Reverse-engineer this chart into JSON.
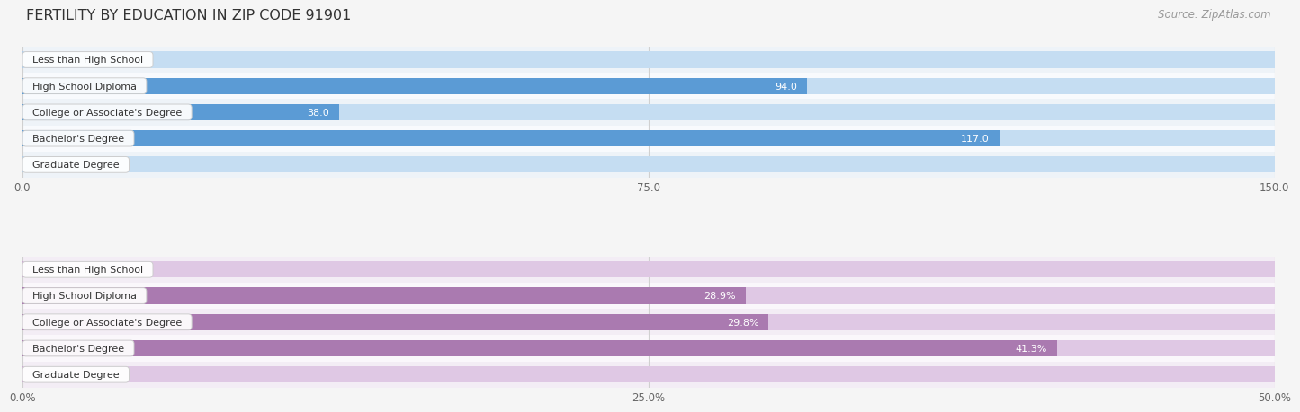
{
  "title": "FERTILITY BY EDUCATION IN ZIP CODE 91901",
  "source": "Source: ZipAtlas.com",
  "top_chart": {
    "categories": [
      "Less than High School",
      "High School Diploma",
      "College or Associate's Degree",
      "Bachelor's Degree",
      "Graduate Degree"
    ],
    "values": [
      0.0,
      94.0,
      38.0,
      117.0,
      0.0
    ],
    "xlim": [
      0,
      150.0
    ],
    "xticks": [
      0.0,
      75.0,
      150.0
    ],
    "xtick_labels": [
      "0.0",
      "75.0",
      "150.0"
    ],
    "bar_color_dark": "#5b9bd5",
    "bar_color_light": "#aecce8",
    "bar_bg_color": "#c5ddf2",
    "row_bg_even": "#eef3f8",
    "row_bg_odd": "#f8fafd",
    "label_color_inside": "#ffffff",
    "label_color_outside": "#666666",
    "threshold_inside": 25
  },
  "bottom_chart": {
    "categories": [
      "Less than High School",
      "High School Diploma",
      "College or Associate's Degree",
      "Bachelor's Degree",
      "Graduate Degree"
    ],
    "values": [
      0.0,
      28.9,
      29.8,
      41.3,
      0.0
    ],
    "xlim": [
      0,
      50.0
    ],
    "xticks": [
      0.0,
      25.0,
      50.0
    ],
    "xtick_labels": [
      "0.0%",
      "25.0%",
      "50.0%"
    ],
    "bar_color_dark": "#aa7ab0",
    "bar_color_light": "#cda8d2",
    "bar_bg_color": "#dfc8e4",
    "row_bg_even": "#f3edf5",
    "row_bg_odd": "#faf7fb",
    "label_color_inside": "#ffffff",
    "label_color_outside": "#666666",
    "threshold_inside": 8
  },
  "background_color": "#f5f5f5",
  "bar_height": 0.62,
  "font_size_title": 11.5,
  "font_size_labels": 8.0,
  "font_size_values": 8.0,
  "font_size_ticks": 8.5,
  "font_size_source": 8.5
}
